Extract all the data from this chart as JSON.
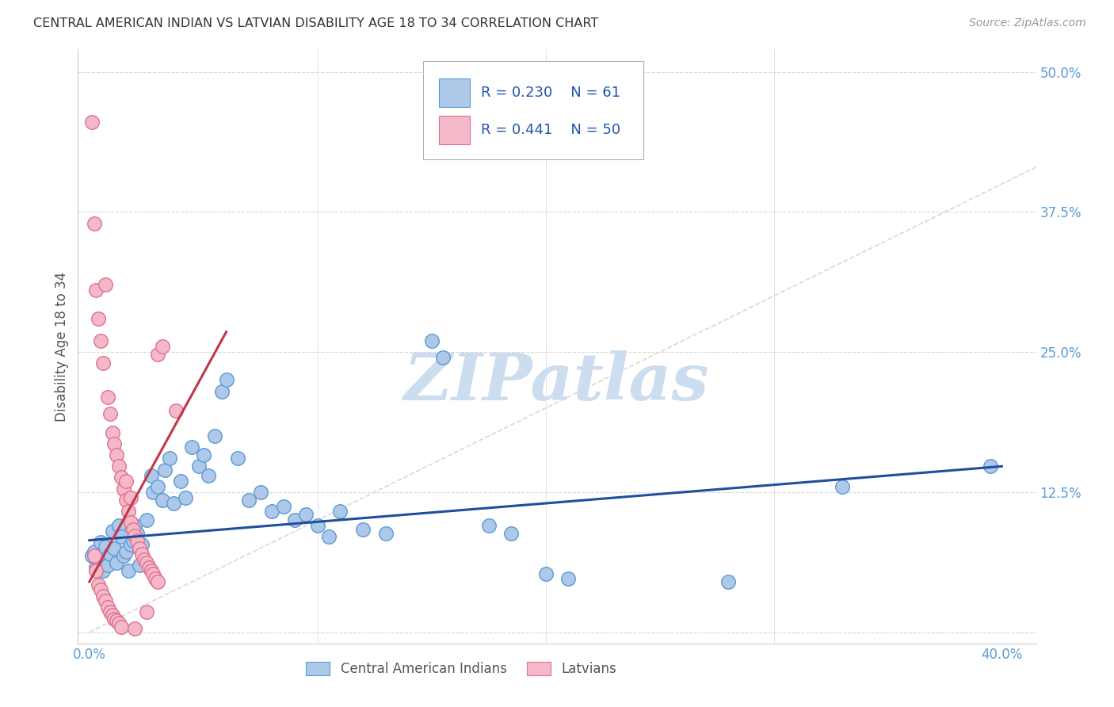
{
  "title": "CENTRAL AMERICAN INDIAN VS LATVIAN DISABILITY AGE 18 TO 34 CORRELATION CHART",
  "source": "Source: ZipAtlas.com",
  "ylabel": "Disability Age 18 to 34",
  "xlim": [
    -0.005,
    0.415
  ],
  "ylim": [
    -0.01,
    0.52
  ],
  "xticks": [
    0.0,
    0.1,
    0.2,
    0.3,
    0.4
  ],
  "xticklabels": [
    "0.0%",
    "",
    "",
    "",
    "40.0%"
  ],
  "yticks": [
    0.0,
    0.125,
    0.25,
    0.375,
    0.5
  ],
  "yticklabels": [
    "",
    "12.5%",
    "25.0%",
    "37.5%",
    "50.0%"
  ],
  "r_blue": 0.23,
  "n_blue": 61,
  "r_pink": 0.441,
  "n_pink": 50,
  "blue_scatter": [
    [
      0.001,
      0.068
    ],
    [
      0.002,
      0.072
    ],
    [
      0.003,
      0.058
    ],
    [
      0.004,
      0.064
    ],
    [
      0.005,
      0.08
    ],
    [
      0.006,
      0.055
    ],
    [
      0.007,
      0.076
    ],
    [
      0.008,
      0.06
    ],
    [
      0.009,
      0.07
    ],
    [
      0.01,
      0.09
    ],
    [
      0.011,
      0.075
    ],
    [
      0.012,
      0.062
    ],
    [
      0.013,
      0.095
    ],
    [
      0.014,
      0.085
    ],
    [
      0.015,
      0.068
    ],
    [
      0.016,
      0.072
    ],
    [
      0.017,
      0.055
    ],
    [
      0.018,
      0.078
    ],
    [
      0.019,
      0.082
    ],
    [
      0.02,
      0.095
    ],
    [
      0.021,
      0.088
    ],
    [
      0.022,
      0.06
    ],
    [
      0.023,
      0.078
    ],
    [
      0.025,
      0.1
    ],
    [
      0.027,
      0.14
    ],
    [
      0.028,
      0.125
    ],
    [
      0.03,
      0.13
    ],
    [
      0.032,
      0.118
    ],
    [
      0.033,
      0.145
    ],
    [
      0.035,
      0.155
    ],
    [
      0.037,
      0.115
    ],
    [
      0.04,
      0.135
    ],
    [
      0.042,
      0.12
    ],
    [
      0.045,
      0.165
    ],
    [
      0.048,
      0.148
    ],
    [
      0.05,
      0.158
    ],
    [
      0.052,
      0.14
    ],
    [
      0.055,
      0.175
    ],
    [
      0.058,
      0.215
    ],
    [
      0.06,
      0.225
    ],
    [
      0.065,
      0.155
    ],
    [
      0.07,
      0.118
    ],
    [
      0.075,
      0.125
    ],
    [
      0.08,
      0.108
    ],
    [
      0.085,
      0.112
    ],
    [
      0.09,
      0.1
    ],
    [
      0.095,
      0.105
    ],
    [
      0.1,
      0.095
    ],
    [
      0.105,
      0.085
    ],
    [
      0.11,
      0.108
    ],
    [
      0.12,
      0.092
    ],
    [
      0.13,
      0.088
    ],
    [
      0.15,
      0.26
    ],
    [
      0.155,
      0.245
    ],
    [
      0.175,
      0.095
    ],
    [
      0.185,
      0.088
    ],
    [
      0.2,
      0.052
    ],
    [
      0.21,
      0.048
    ],
    [
      0.28,
      0.045
    ],
    [
      0.33,
      0.13
    ],
    [
      0.395,
      0.148
    ]
  ],
  "pink_scatter": [
    [
      0.001,
      0.455
    ],
    [
      0.002,
      0.365
    ],
    [
      0.003,
      0.305
    ],
    [
      0.004,
      0.28
    ],
    [
      0.005,
      0.26
    ],
    [
      0.006,
      0.24
    ],
    [
      0.007,
      0.31
    ],
    [
      0.008,
      0.21
    ],
    [
      0.009,
      0.195
    ],
    [
      0.01,
      0.178
    ],
    [
      0.011,
      0.168
    ],
    [
      0.012,
      0.158
    ],
    [
      0.013,
      0.148
    ],
    [
      0.014,
      0.138
    ],
    [
      0.015,
      0.128
    ],
    [
      0.016,
      0.118
    ],
    [
      0.017,
      0.108
    ],
    [
      0.018,
      0.098
    ],
    [
      0.019,
      0.092
    ],
    [
      0.02,
      0.086
    ],
    [
      0.021,
      0.082
    ],
    [
      0.022,
      0.075
    ],
    [
      0.023,
      0.07
    ],
    [
      0.024,
      0.065
    ],
    [
      0.025,
      0.062
    ],
    [
      0.026,
      0.058
    ],
    [
      0.027,
      0.055
    ],
    [
      0.028,
      0.052
    ],
    [
      0.029,
      0.048
    ],
    [
      0.03,
      0.045
    ],
    [
      0.002,
      0.068
    ],
    [
      0.003,
      0.055
    ],
    [
      0.004,
      0.042
    ],
    [
      0.005,
      0.038
    ],
    [
      0.006,
      0.032
    ],
    [
      0.007,
      0.028
    ],
    [
      0.008,
      0.022
    ],
    [
      0.009,
      0.018
    ],
    [
      0.01,
      0.015
    ],
    [
      0.011,
      0.012
    ],
    [
      0.012,
      0.01
    ],
    [
      0.013,
      0.008
    ],
    [
      0.014,
      0.005
    ],
    [
      0.02,
      0.003
    ],
    [
      0.025,
      0.018
    ],
    [
      0.03,
      0.248
    ],
    [
      0.032,
      0.255
    ],
    [
      0.038,
      0.198
    ],
    [
      0.018,
      0.12
    ],
    [
      0.016,
      0.135
    ]
  ],
  "blue_line": [
    0.0,
    0.082,
    0.4,
    0.148
  ],
  "pink_line": [
    0.0,
    0.045,
    0.06,
    0.268
  ],
  "diagonal_line": [
    0.0,
    0.0,
    0.5,
    0.5
  ],
  "blue_color": "#adc8e8",
  "blue_edge": "#5b9bd5",
  "pink_color": "#f4b8c8",
  "pink_edge": "#e07090",
  "blue_line_color": "#1f4e9e",
  "pink_line_color": "#c0384a",
  "diag_color": "#c8c8c8",
  "grid_color": "#d8d8d8",
  "title_color": "#333333",
  "tick_color": "#5b9bd5",
  "legend_text_color": "#2255aa",
  "watermark_text": "ZIPatlas",
  "watermark_color": "#ccddf0",
  "bg_color": "#ffffff"
}
